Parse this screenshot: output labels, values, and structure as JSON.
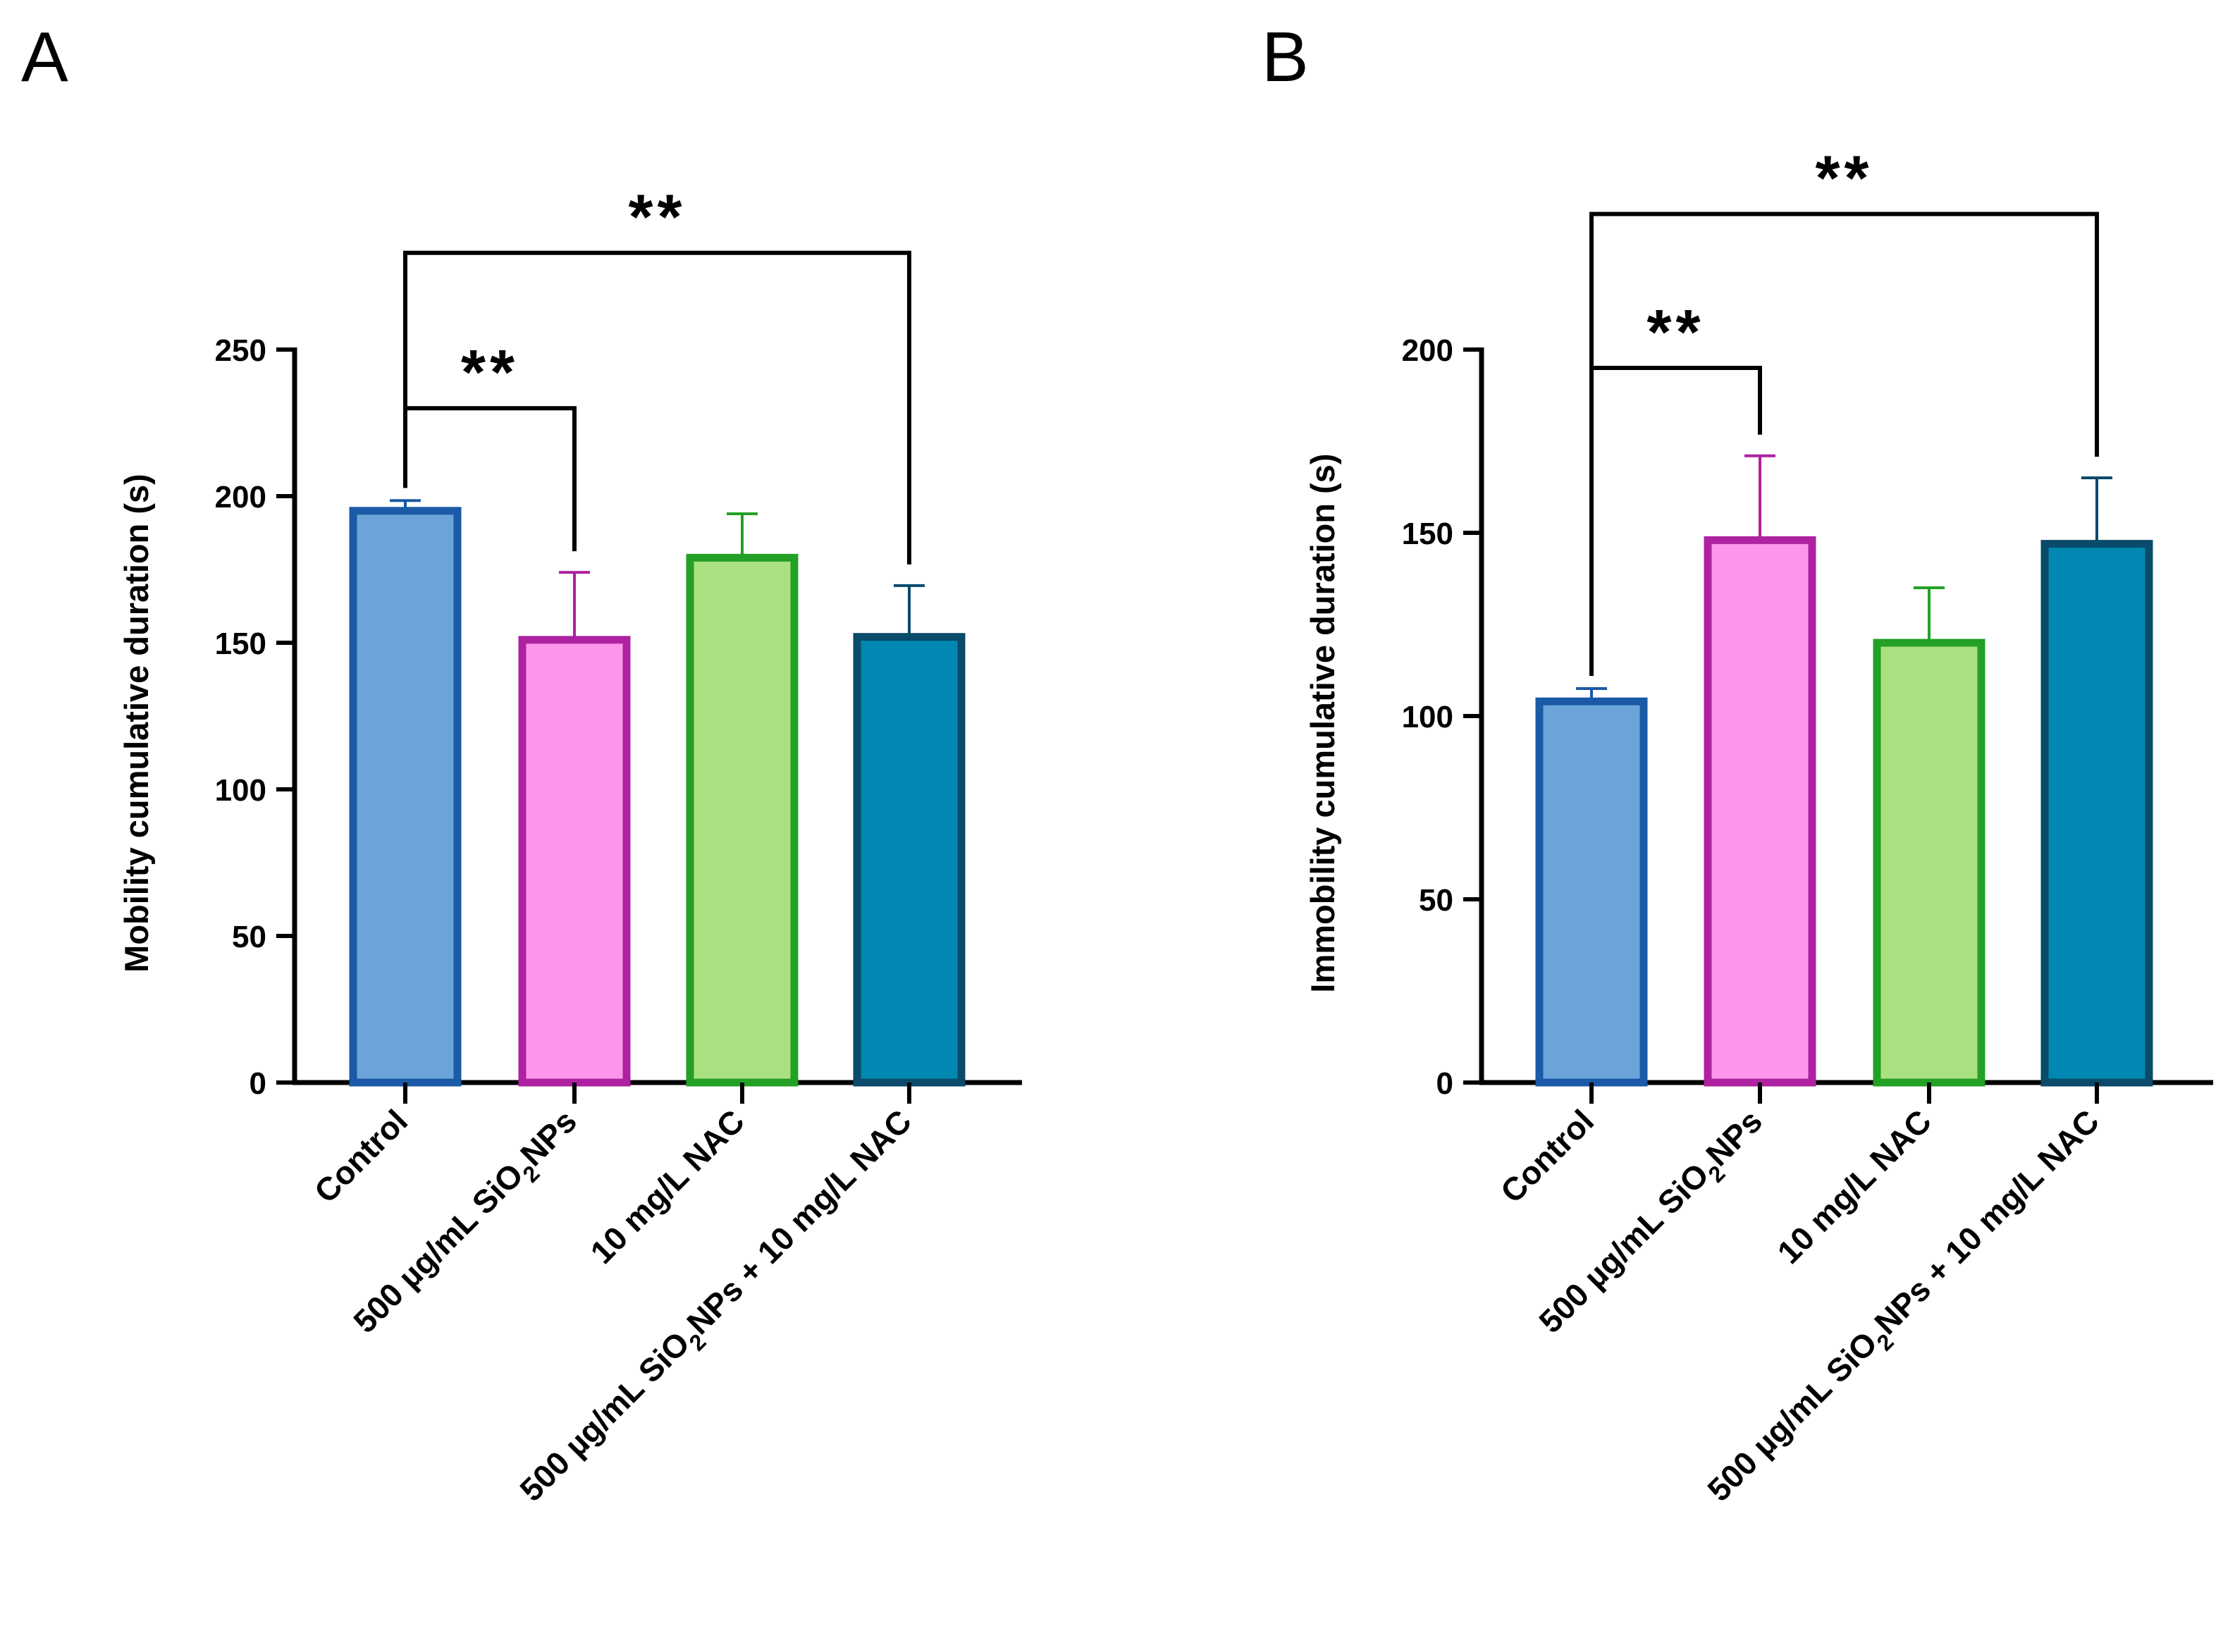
{
  "colors": {
    "fills": [
      "#6CA3D9",
      "#FD96EA",
      "#ABE081",
      "#0188B2"
    ],
    "strokes": [
      "#1A5AA6",
      "#AE22A1",
      "#23A026",
      "#0A4A6A"
    ],
    "axis": "#000000"
  },
  "chart_data": [
    {
      "panel": "A",
      "type": "bar",
      "title": "",
      "xlabel": "",
      "ylabel": "Mobility cumulative duration (s)",
      "ylim": [
        0,
        250
      ],
      "yticks": [
        0,
        50,
        100,
        150,
        200,
        250
      ],
      "yticklabels": [
        "0",
        "50",
        "100",
        "150",
        "200",
        "250"
      ],
      "categories": [
        {
          "pre": "Control",
          "sub": "",
          "post": ""
        },
        {
          "pre": "500 µg/mL SiO",
          "sub": "2",
          "post": "NPs"
        },
        {
          "pre": "10 mg/L NAC",
          "sub": "",
          "post": ""
        },
        {
          "pre": "500 µg/mL SiO",
          "sub": "2",
          "post": "NPs + 10 mg/L NAC"
        }
      ],
      "values": [
        195,
        151,
        179,
        152
      ],
      "error_upper": [
        198.5,
        174,
        194,
        169.5
      ],
      "significance": [
        {
          "from": 0,
          "to": 1,
          "label": "**",
          "level": 230
        },
        {
          "from": 0,
          "to": 3,
          "label": "**",
          "level": 283
        }
      ]
    },
    {
      "panel": "B",
      "type": "bar",
      "title": "",
      "xlabel": "",
      "ylabel": "Immobility cumulative duration (s)",
      "ylim": [
        0,
        200
      ],
      "yticks": [
        0,
        50,
        100,
        150,
        200
      ],
      "yticklabels": [
        "0",
        "50",
        "100",
        "150",
        "200"
      ],
      "categories": [
        {
          "pre": "Control",
          "sub": "",
          "post": ""
        },
        {
          "pre": "500 µg/mL SiO",
          "sub": "2",
          "post": "NPs"
        },
        {
          "pre": "10 mg/L NAC",
          "sub": "",
          "post": ""
        },
        {
          "pre": "500 µg/mL SiO",
          "sub": "2",
          "post": "NPs + 10 mg/L NAC"
        }
      ],
      "values": [
        104,
        148,
        120,
        147
      ],
      "error_upper": [
        107.5,
        171,
        135,
        165
      ],
      "significance": [
        {
          "from": 0,
          "to": 1,
          "label": "**",
          "level": 195
        },
        {
          "from": 0,
          "to": 3,
          "label": "**",
          "level": 237
        }
      ]
    }
  ]
}
